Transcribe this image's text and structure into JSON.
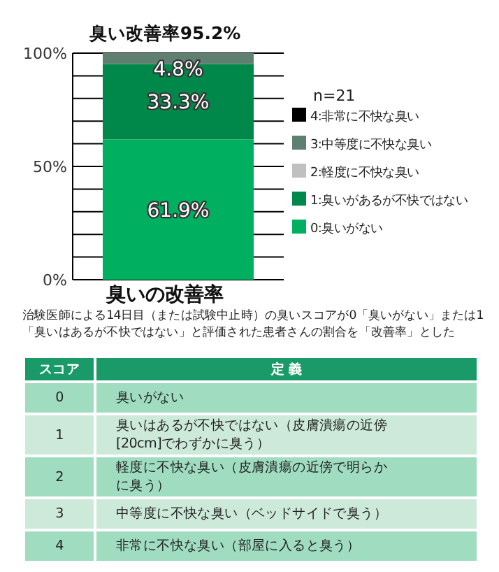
{
  "chart_data": {
    "type": "bar",
    "stacked": true,
    "title": "臭い改善率95.2%",
    "xlabel": "臭いの改善率",
    "legend_title": "n=21",
    "legend": "right",
    "grid": "y",
    "categories": [
      null
    ],
    "ylim": [
      0,
      100
    ],
    "yticks": [
      {
        "value": 0,
        "label": "0%"
      },
      {
        "value": 10,
        "label": null
      },
      {
        "value": 20,
        "label": null
      },
      {
        "value": 30,
        "label": null
      },
      {
        "value": 40,
        "label": null
      },
      {
        "value": 50,
        "label": "50%"
      },
      {
        "value": 60,
        "label": null
      },
      {
        "value": 70,
        "label": null
      },
      {
        "value": 80,
        "label": null
      },
      {
        "value": 90,
        "label": null
      },
      {
        "value": 100,
        "label": "100%"
      }
    ],
    "series": [
      {
        "name": "0:臭いがない",
        "color": "#00b060",
        "values": [
          61.9
        ],
        "value_labels": [
          "61.9%"
        ]
      },
      {
        "name": "1:臭いがあるが不快ではない",
        "color": "#00884a",
        "values": [
          33.3
        ],
        "value_labels": [
          "33.3%"
        ]
      },
      {
        "name": "2:軽度に不快な臭い",
        "color": "#c0c0c0",
        "values": [
          0
        ],
        "value_labels": [
          null
        ]
      },
      {
        "name": "3:中等度に不快な臭い",
        "color": "#5f8070",
        "values": [
          4.8
        ],
        "value_labels": [
          "4.8%"
        ]
      },
      {
        "name": "4:非常に不快な臭い",
        "color": "#000000",
        "values": [
          0
        ],
        "value_labels": [
          null
        ]
      }
    ],
    "annotations": [
      "治験医師による14日目（または試験中止時）の臭いスコアが0「臭いがない」または1「臭いはあるが不快ではない」と評価された患者さんの割合を「改善率」とした",
      "スコア",
      "定 義",
      "0",
      "臭いがない",
      "1",
      "臭いはあるが不快ではない（皮膚潰瘍の近傍[20cm]でわずかに臭う）",
      "2",
      "軽度に不快な臭い（皮膚潰瘍の近傍で明らかに臭う）",
      "3",
      "中等度に不快な臭い（ベッドサイドで臭う）",
      "4",
      "非常に不快な臭い（部屋に入ると臭う）"
    ]
  }
}
